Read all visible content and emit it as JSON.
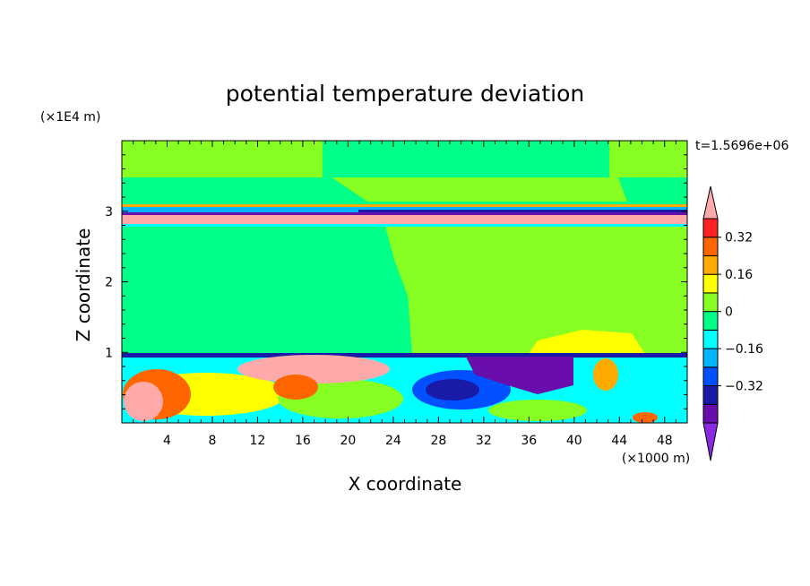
{
  "chart_data": {
    "type": "heatmap",
    "title": "potential temperature deviation",
    "xlabel": "X coordinate",
    "ylabel": "Z coordinate",
    "x_unit": "(×1000 m)",
    "y_unit": "(×1E4 m)",
    "time_label": "t=1.5696e+06",
    "xlim": [
      0,
      50
    ],
    "ylim": [
      0,
      4
    ],
    "x_ticks": [
      4,
      8,
      12,
      16,
      20,
      24,
      28,
      32,
      36,
      40,
      44,
      48
    ],
    "y_ticks": [
      1,
      2,
      3
    ],
    "colorbar": {
      "levels": [
        -0.48,
        -0.4,
        -0.32,
        -0.24,
        -0.16,
        -0.08,
        0,
        0.08,
        0.16,
        0.24,
        0.32,
        0.4
      ],
      "labels": [
        {
          "text": "0.32",
          "value": 0.32
        },
        {
          "text": "0.16",
          "value": 0.16
        },
        {
          "text": "0",
          "value": 0
        },
        {
          "text": "−0.16",
          "value": -0.16
        },
        {
          "text": "−0.32",
          "value": -0.32
        }
      ],
      "colors": [
        "#8a2be2",
        "#6a0dad",
        "#1a1aa8",
        "#0050ff",
        "#00b4ff",
        "#00ffff",
        "#00ff88",
        "#88ff22",
        "#ffff00",
        "#ffaa00",
        "#ff6600",
        "#ff2222",
        "#ffaaaa"
      ]
    },
    "features": [
      {
        "desc": "upper layer band",
        "x": [
          0,
          50
        ],
        "z": [
          2.8,
          3.0
        ],
        "value": 0.44
      },
      {
        "desc": "lower inversion layer",
        "x": [
          0,
          50
        ],
        "z": [
          0.95,
          1.0
        ],
        "value": -0.36
      },
      {
        "desc": "cold pool",
        "x": [
          30,
          40
        ],
        "z": [
          0.55,
          0.9
        ],
        "value": -0.44
      },
      {
        "desc": "warm plume",
        "x": [
          13,
          24
        ],
        "z": [
          0.55,
          0.95
        ],
        "value": 0.44
      }
    ]
  }
}
